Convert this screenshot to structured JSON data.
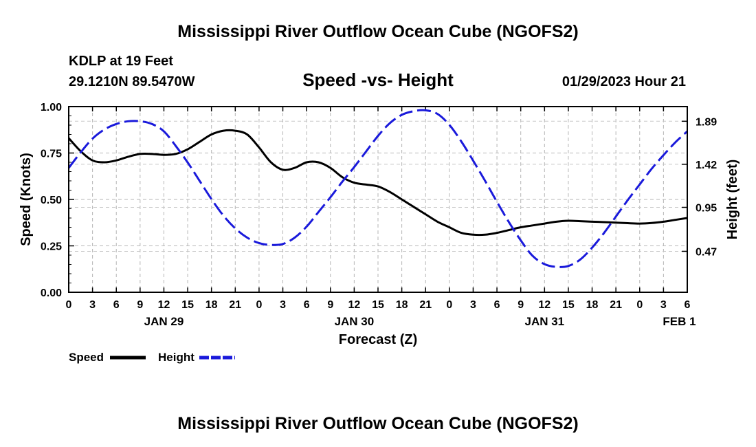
{
  "chart_data": {
    "type": "line",
    "title": "Mississippi River Outflow Ocean Cube (NGOFS2)",
    "station": "KDLP at 19 Feet",
    "coords": "29.1210N  89.5470W",
    "subtitle": "Speed -vs- Height",
    "timestamp": "01/29/2023 Hour 21",
    "xlabel": "Forecast (Z)",
    "ylabel": "Speed (Knots)",
    "y2label": "Height (feet)",
    "xlim": [
      0,
      78
    ],
    "ylim": [
      0,
      1
    ],
    "y2lim": [
      0.023,
      2.05
    ],
    "x_ticks": [
      0,
      3,
      6,
      9,
      12,
      15,
      18,
      21,
      24,
      27,
      30,
      33,
      36,
      39,
      42,
      45,
      48,
      51,
      54,
      57,
      60,
      63,
      66,
      69,
      72,
      75,
      78
    ],
    "x_tick_labels": [
      "0",
      "3",
      "6",
      "9",
      "12",
      "15",
      "18",
      "21",
      "0",
      "3",
      "6",
      "9",
      "12",
      "15",
      "18",
      "21",
      "0",
      "3",
      "6",
      "9",
      "12",
      "15",
      "18",
      "21",
      "0",
      "3",
      "6"
    ],
    "y_ticks": [
      0,
      0.25,
      0.5,
      0.75,
      1.0
    ],
    "y_tick_labels": [
      "0.00",
      "0.25",
      "0.50",
      "0.75",
      "1.00"
    ],
    "y2_ticks": [
      0.47,
      0.95,
      1.42,
      1.89
    ],
    "y2_tick_labels": [
      "0.47",
      "0.95",
      "1.42",
      "1.89"
    ],
    "day_labels": [
      {
        "x": 12,
        "label": "JAN 29"
      },
      {
        "x": 36,
        "label": "JAN 30"
      },
      {
        "x": 60,
        "label": "JAN 31"
      },
      {
        "x": 77,
        "label": "FEB 1"
      }
    ],
    "series": [
      {
        "name": "Speed",
        "axis": "left",
        "color": "#000000",
        "style": "solid",
        "x": [
          0,
          1.5,
          3,
          4.5,
          6,
          7.5,
          9,
          10.5,
          12,
          13.5,
          15,
          16.5,
          18,
          19.5,
          21,
          22.5,
          24,
          25.5,
          27,
          28.5,
          30,
          31.5,
          33,
          34.5,
          36,
          37.5,
          39,
          40.5,
          42,
          43.5,
          45,
          46.5,
          48,
          49.5,
          51,
          52.5,
          54,
          55.5,
          57,
          58.5,
          60,
          61.5,
          63,
          64.5,
          66,
          67.5,
          69,
          70.5,
          72,
          73.5,
          75,
          76.5,
          78
        ],
        "values": [
          0.83,
          0.76,
          0.71,
          0.7,
          0.71,
          0.73,
          0.745,
          0.745,
          0.74,
          0.745,
          0.77,
          0.81,
          0.85,
          0.87,
          0.87,
          0.85,
          0.78,
          0.7,
          0.66,
          0.67,
          0.7,
          0.7,
          0.67,
          0.62,
          0.59,
          0.58,
          0.57,
          0.54,
          0.5,
          0.46,
          0.42,
          0.38,
          0.35,
          0.32,
          0.31,
          0.31,
          0.32,
          0.335,
          0.35,
          0.36,
          0.37,
          0.38,
          0.385,
          0.383,
          0.38,
          0.378,
          0.375,
          0.372,
          0.37,
          0.373,
          0.38,
          0.39,
          0.4
        ]
      },
      {
        "name": "Height",
        "axis": "right",
        "color": "#1a1adb",
        "style": "dashed",
        "x": [
          0,
          1.5,
          3,
          4.5,
          6,
          7.5,
          9,
          10.5,
          12,
          13.5,
          15,
          16.5,
          18,
          19.5,
          21,
          22.5,
          24,
          25.5,
          27,
          28.5,
          30,
          31.5,
          33,
          34.5,
          36,
          37.5,
          39,
          40.5,
          42,
          43.5,
          45,
          46.5,
          48,
          49.5,
          51,
          52.5,
          54,
          55.5,
          57,
          58.5,
          60,
          61.5,
          63,
          64.5,
          66,
          67.5,
          69,
          70.5,
          72,
          73.5,
          75,
          76.5,
          78
        ],
        "values": [
          1.38,
          1.55,
          1.7,
          1.8,
          1.86,
          1.89,
          1.89,
          1.86,
          1.78,
          1.62,
          1.44,
          1.24,
          1.04,
          0.86,
          0.72,
          0.62,
          0.56,
          0.54,
          0.55,
          0.62,
          0.74,
          0.9,
          1.06,
          1.23,
          1.39,
          1.56,
          1.73,
          1.87,
          1.96,
          2.0,
          2.01,
          1.97,
          1.85,
          1.67,
          1.46,
          1.24,
          1.01,
          0.79,
          0.59,
          0.42,
          0.33,
          0.3,
          0.31,
          0.38,
          0.51,
          0.67,
          0.85,
          1.03,
          1.2,
          1.37,
          1.52,
          1.66,
          1.78
        ]
      }
    ],
    "legend": [
      {
        "label": "Speed",
        "color": "#000000",
        "style": "solid"
      },
      {
        "label": "Height",
        "color": "#1a1adb",
        "style": "dashed"
      }
    ],
    "footer_title": "Mississippi River Outflow Ocean Cube (NGOFS2)"
  }
}
